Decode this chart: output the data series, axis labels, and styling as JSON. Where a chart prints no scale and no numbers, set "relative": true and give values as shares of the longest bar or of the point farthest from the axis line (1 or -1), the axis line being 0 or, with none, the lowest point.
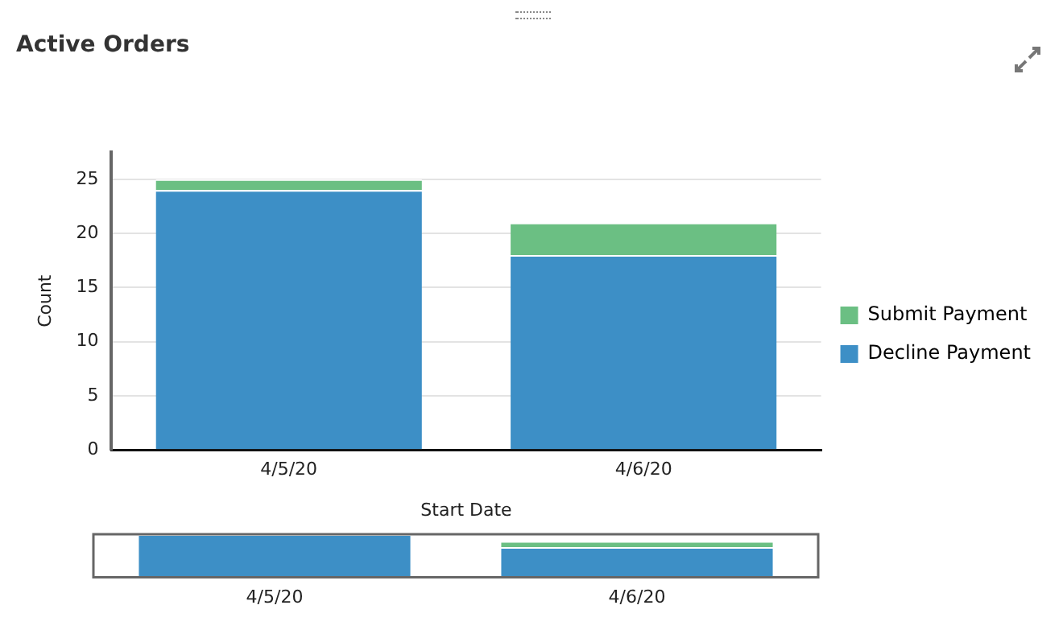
{
  "chart_data": [
    {
      "type": "bar",
      "title": "Active Orders",
      "xlabel": "Start Date",
      "ylabel": "Count",
      "categories": [
        "4/5/20",
        "4/6/20"
      ],
      "stacked": true,
      "series": [
        {
          "name": "Decline Payment",
          "color": "#3d8fc6",
          "values": [
            24,
            18
          ]
        },
        {
          "name": "Submit Payment",
          "color": "#6bbf83",
          "values": [
            1,
            3
          ]
        }
      ],
      "ylim": [
        0,
        27.5
      ],
      "yticks": [
        0,
        5,
        10,
        15,
        20,
        25
      ],
      "grid": "y",
      "legend": "right"
    },
    {
      "type": "bar",
      "categories": [
        "4/5/20",
        "4/6/20"
      ],
      "stacked": true,
      "relative": true,
      "tick_labels": "x",
      "series": [
        {
          "color": "#3d8fc6",
          "values": [
            1,
            0.7
          ]
        },
        {
          "color": "#6bbf83",
          "values": [
            0,
            0.14
          ]
        }
      ],
      "grid": false,
      "legend": false
    }
  ]
}
